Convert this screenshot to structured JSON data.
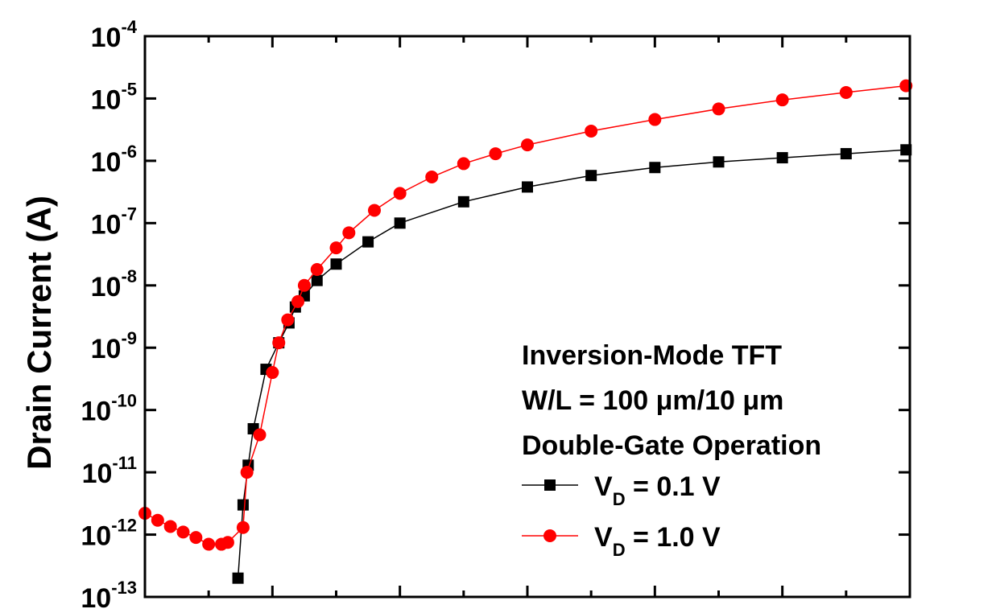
{
  "chart_data": {
    "type": "scatter",
    "title": "",
    "ylabel": "Drain Current (A)",
    "xlabel": "",
    "y_scale": "log",
    "ylim": [
      1e-13,
      0.0001
    ],
    "xlim": [
      -1,
      5
    ],
    "y_tick_labels": [
      {
        "base": "10",
        "exp": "-4",
        "value": 0.0001
      },
      {
        "base": "10",
        "exp": "-5",
        "value": 1e-05
      },
      {
        "base": "10",
        "exp": "-6",
        "value": 1e-06
      },
      {
        "base": "10",
        "exp": "-7",
        "value": 1e-07
      },
      {
        "base": "10",
        "exp": "-8",
        "value": 1e-08
      },
      {
        "base": "10",
        "exp": "-9",
        "value": 1e-09
      },
      {
        "base": "10",
        "exp": "-10",
        "value": 1e-10
      },
      {
        "base": "10",
        "exp": "-11",
        "value": 1e-11
      },
      {
        "base": "10",
        "exp": "-12",
        "value": 1e-12
      },
      {
        "base": "10",
        "exp": "-13",
        "value": 1e-13
      }
    ],
    "x_ticks": [
      -1,
      0,
      1,
      2,
      3,
      4,
      5
    ],
    "annotation_lines": [
      "Inversion-Mode TFT",
      "W/L = 100 μm/10 μm",
      "Double-Gate Operation"
    ],
    "legend_position": "right",
    "series": [
      {
        "name_main": "V",
        "name_sub": "D",
        "name_rest": " = 0.1 V",
        "color": "#000000",
        "marker": "square",
        "line": true,
        "points": [
          [
            -0.27,
            2e-13
          ],
          [
            -0.23,
            3e-12
          ],
          [
            -0.19,
            1.3e-11
          ],
          [
            -0.15,
            5e-11
          ],
          [
            -0.05,
            4.5e-10
          ],
          [
            0.05,
            1.2e-09
          ],
          [
            0.13,
            2.5e-09
          ],
          [
            0.18,
            4.5e-09
          ],
          [
            0.25,
            6.8e-09
          ],
          [
            0.35,
            1.2e-08
          ],
          [
            0.5,
            2.2e-08
          ],
          [
            0.75,
            5e-08
          ],
          [
            1.0,
            1e-07
          ],
          [
            1.5,
            2.2e-07
          ],
          [
            2.0,
            3.8e-07
          ],
          [
            2.5,
            5.8e-07
          ],
          [
            3.0,
            7.8e-07
          ],
          [
            3.5,
            9.6e-07
          ],
          [
            4.0,
            1.12e-06
          ],
          [
            4.5,
            1.3e-06
          ],
          [
            4.97,
            1.5e-06
          ]
        ]
      },
      {
        "name_main": "V",
        "name_sub": "D",
        "name_rest": " = 1.0 V",
        "color": "#ff0000",
        "marker": "circle",
        "line": true,
        "points": [
          [
            -1.0,
            2.2e-12
          ],
          [
            -0.9,
            1.7e-12
          ],
          [
            -0.8,
            1.35e-12
          ],
          [
            -0.7,
            1.1e-12
          ],
          [
            -0.6,
            9e-13
          ],
          [
            -0.5,
            7e-13
          ],
          [
            -0.4,
            7e-13
          ],
          [
            -0.35,
            7.5e-13
          ],
          [
            -0.23,
            1.3e-12
          ],
          [
            -0.2,
            1e-11
          ],
          [
            -0.1,
            4e-11
          ],
          [
            0.0,
            4e-10
          ],
          [
            0.05,
            1.2e-09
          ],
          [
            0.12,
            2.8e-09
          ],
          [
            0.2,
            5.5e-09
          ],
          [
            0.25,
            1e-08
          ],
          [
            0.35,
            1.8e-08
          ],
          [
            0.5,
            4e-08
          ],
          [
            0.6,
            7e-08
          ],
          [
            0.8,
            1.6e-07
          ],
          [
            1.0,
            3e-07
          ],
          [
            1.25,
            5.5e-07
          ],
          [
            1.5,
            9e-07
          ],
          [
            1.75,
            1.3e-06
          ],
          [
            2.0,
            1.8e-06
          ],
          [
            2.5,
            3e-06
          ],
          [
            3.0,
            4.6e-06
          ],
          [
            3.5,
            6.8e-06
          ],
          [
            4.0,
            9.5e-06
          ],
          [
            4.5,
            1.25e-05
          ],
          [
            4.97,
            1.6e-05
          ]
        ]
      }
    ]
  }
}
